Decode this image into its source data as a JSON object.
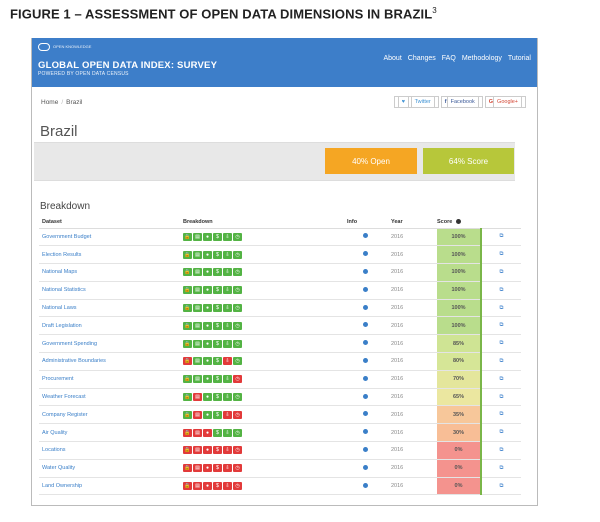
{
  "caption": {
    "text": "FIGURE 1 – ASSESSMENT OF OPEN DATA DIMENSIONS IN BRAZIL",
    "footnote": "3"
  },
  "colors": {
    "navbar": "#3d7ec9",
    "open_pill": "#f5a623",
    "score_pill": "#b7c73a",
    "pass": "#53b344",
    "fail": "#e23a3a"
  },
  "header": {
    "logo_text": "OPEN KNOWLEDGE",
    "title": "GLOBAL OPEN DATA INDEX: SURVEY",
    "subtitle": "POWERED BY OPEN DATA CENSUS",
    "nav": [
      "About",
      "Changes",
      "FAQ",
      "Methodology",
      "Tutorial"
    ]
  },
  "breadcrumb": {
    "home": "Home",
    "current": "Brazil"
  },
  "share": {
    "twitter": "Twitter",
    "facebook": "Facebook",
    "google": "Google+"
  },
  "page_title": "Brazil",
  "summary": {
    "open": "40% Open",
    "score": "64% Score"
  },
  "section_title": "Breakdown",
  "table": {
    "headers": {
      "dataset": "Dataset",
      "breakdown": "Breakdown",
      "info": "Info",
      "year": "Year",
      "score": "Score"
    },
    "badge_icons": [
      "lock-icon",
      "document-icon",
      "eye-icon",
      "dollar-icon",
      "download-icon",
      "clock-icon"
    ],
    "badge_glyphs": [
      "🔒",
      "▤",
      "●",
      "$",
      "⇩",
      "◷"
    ],
    "rows": [
      {
        "dataset": "Government Budget",
        "year": "2016",
        "score": "100%",
        "bg": "#b9dd8c",
        "flags": [
          1,
          1,
          1,
          1,
          1,
          1
        ]
      },
      {
        "dataset": "Election Results",
        "year": "2016",
        "score": "100%",
        "bg": "#b9dd8c",
        "flags": [
          1,
          1,
          1,
          1,
          1,
          1
        ]
      },
      {
        "dataset": "National Maps",
        "year": "2016",
        "score": "100%",
        "bg": "#b9dd8c",
        "flags": [
          1,
          1,
          1,
          1,
          1,
          1
        ]
      },
      {
        "dataset": "National Statistics",
        "year": "2016",
        "score": "100%",
        "bg": "#b9dd8c",
        "flags": [
          1,
          1,
          1,
          1,
          1,
          1
        ]
      },
      {
        "dataset": "National Laws",
        "year": "2016",
        "score": "100%",
        "bg": "#b9dd8c",
        "flags": [
          1,
          1,
          1,
          1,
          1,
          1
        ]
      },
      {
        "dataset": "Draft Legislation",
        "year": "2016",
        "score": "100%",
        "bg": "#b9dd8c",
        "flags": [
          1,
          1,
          1,
          1,
          1,
          1
        ]
      },
      {
        "dataset": "Government Spending",
        "year": "2016",
        "score": "85%",
        "bg": "#cfe494",
        "flags": [
          1,
          1,
          1,
          1,
          1,
          1
        ]
      },
      {
        "dataset": "Administrative Boundaries",
        "year": "2016",
        "score": "80%",
        "bg": "#d6e697",
        "flags": [
          0,
          1,
          1,
          1,
          0,
          1
        ]
      },
      {
        "dataset": "Procurement",
        "year": "2016",
        "score": "70%",
        "bg": "#e4e69c",
        "flags": [
          1,
          1,
          1,
          1,
          1,
          0
        ]
      },
      {
        "dataset": "Weather Forecast",
        "year": "2016",
        "score": "65%",
        "bg": "#ebe7a0",
        "flags": [
          1,
          0,
          1,
          1,
          1,
          1
        ]
      },
      {
        "dataset": "Company Register",
        "year": "2016",
        "score": "35%",
        "bg": "#f7c79a",
        "flags": [
          1,
          0,
          1,
          1,
          0,
          0
        ]
      },
      {
        "dataset": "Air Quality",
        "year": "2016",
        "score": "30%",
        "bg": "#f8be96",
        "flags": [
          0,
          0,
          0,
          1,
          1,
          1
        ]
      },
      {
        "dataset": "Locations",
        "year": "2016",
        "score": "0%",
        "bg": "#f4938e",
        "flags": [
          0,
          0,
          0,
          0,
          0,
          0
        ]
      },
      {
        "dataset": "Water Quality",
        "year": "2016",
        "score": "0%",
        "bg": "#f4938e",
        "flags": [
          0,
          0,
          0,
          0,
          0,
          0
        ]
      },
      {
        "dataset": "Land Ownership",
        "year": "2016",
        "score": "0%",
        "bg": "#f4938e",
        "flags": [
          0,
          0,
          0,
          0,
          0,
          0
        ]
      }
    ]
  }
}
